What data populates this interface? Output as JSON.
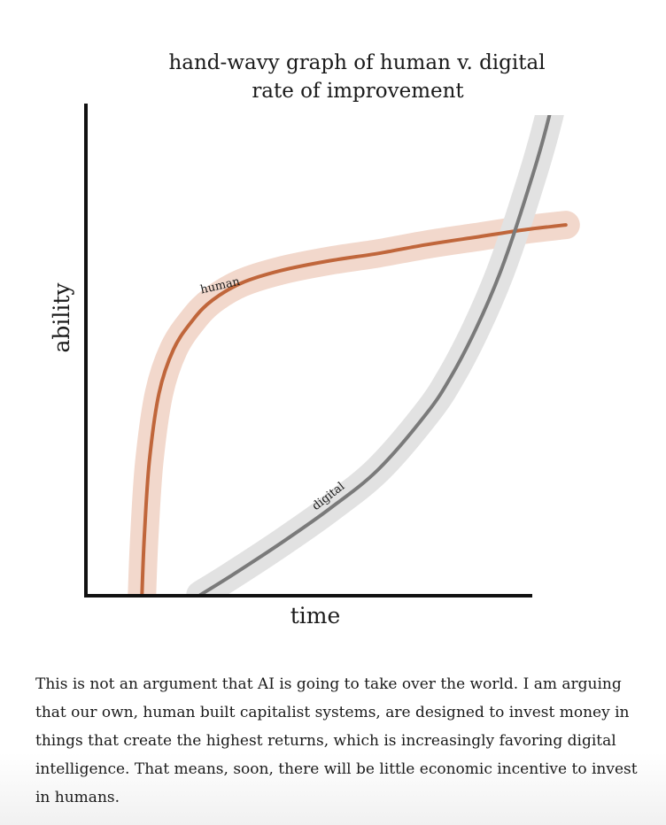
{
  "chart_data": {
    "type": "line",
    "title": "hand-wavy graph of human v. digital rate of improvement",
    "title_lines": [
      "hand-wavy graph of human v. digital",
      "rate of improvement"
    ],
    "xlabel": "time",
    "ylabel": "ability",
    "xlim": [
      0,
      100
    ],
    "ylim": [
      0,
      100
    ],
    "grid": false,
    "ticks": "none",
    "legend": "none (curves labelled inline)",
    "series": [
      {
        "name": "human",
        "color": "#c0663b",
        "band_color": "#f2d8cc",
        "x": [
          11.5,
          12,
          13,
          15,
          18,
          22,
          26,
          32,
          40,
          50,
          60,
          70,
          80,
          90,
          98.5
        ],
        "y": [
          0,
          12,
          27,
          41,
          50,
          56,
          60,
          63.5,
          66,
          68,
          69.5,
          71.3,
          72.8,
          74.3,
          75.3
        ]
      },
      {
        "name": "digital",
        "color": "#7a7a7a",
        "band_color": "#e2e2e2",
        "x": [
          23.5,
          30,
          40,
          50,
          60,
          70,
          75,
          80,
          85,
          90,
          95,
          100
        ],
        "y": [
          0,
          4,
          10.5,
          17.5,
          25.5,
          37,
          44.5,
          54,
          65.5,
          80,
          97,
          120
        ]
      }
    ]
  },
  "caption": "This is not an argument that AI is going to take over the world. I am arguing that our own, human built capitalist systems, are designed to invest money in things that create the highest returns, which is increasingly favoring digital intelligence. That means, soon, there will be little economic incentive to invest in humans."
}
